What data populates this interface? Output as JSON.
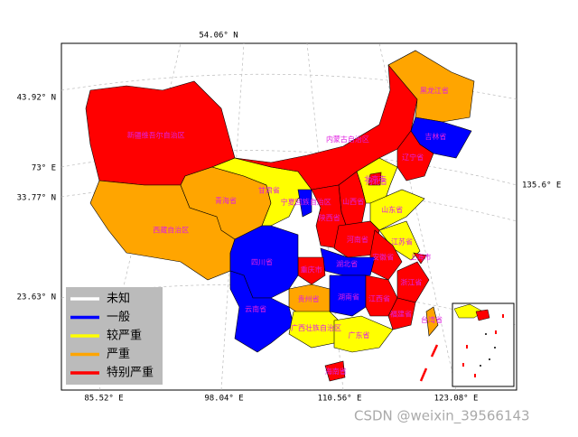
{
  "map": {
    "top_label": "54.06° N",
    "lat_labels": [
      "43.92° N",
      "33.77° N",
      "23.63° N"
    ],
    "left_lon_label": "73° E",
    "right_lon_label": "135.6° E",
    "bottom_labels": [
      "85.52° E",
      "98.04° E",
      "110.56° E",
      "123.08° E"
    ],
    "legend": [
      {
        "label": "未知",
        "color": "#ffffff"
      },
      {
        "label": "一般",
        "color": "#0000ff"
      },
      {
        "label": "较严重",
        "color": "#ffff00"
      },
      {
        "label": "严重",
        "color": "#ffa500"
      },
      {
        "label": "特别严重",
        "color": "#ff0000"
      }
    ],
    "regions": [
      {
        "name": "新疆维吾尔自治区",
        "level": 4
      },
      {
        "name": "西藏自治区",
        "level": 3
      },
      {
        "name": "青海省",
        "level": 3
      },
      {
        "name": "甘肃省",
        "level": 2
      },
      {
        "name": "内蒙古自治区",
        "level": 4
      },
      {
        "name": "黑龙江省",
        "level": 3
      },
      {
        "name": "吉林省",
        "level": 1
      },
      {
        "name": "辽宁省",
        "level": 4
      },
      {
        "name": "河北省",
        "level": 2
      },
      {
        "name": "北京市",
        "level": 4
      },
      {
        "name": "山西省",
        "level": 4
      },
      {
        "name": "陕西省",
        "level": 4
      },
      {
        "name": "宁夏回族自治区",
        "level": 1
      },
      {
        "name": "山东省",
        "level": 2
      },
      {
        "name": "河南省",
        "level": 4
      },
      {
        "name": "江苏省",
        "level": 2
      },
      {
        "name": "安徽省",
        "level": 4
      },
      {
        "name": "上海市",
        "level": 4
      },
      {
        "name": "浙江省",
        "level": 4
      },
      {
        "name": "湖北省",
        "level": 1
      },
      {
        "name": "重庆市",
        "level": 4
      },
      {
        "name": "四川省",
        "level": 1
      },
      {
        "name": "湖南省",
        "level": 1
      },
      {
        "name": "江西省",
        "level": 4
      },
      {
        "name": "福建省",
        "level": 4
      },
      {
        "name": "贵州省",
        "level": 3
      },
      {
        "name": "云南省",
        "level": 1
      },
      {
        "name": "广西壮族自治区",
        "level": 2
      },
      {
        "name": "广东省",
        "level": 2
      },
      {
        "name": "海南省",
        "level": 4
      },
      {
        "name": "台湾省",
        "level": 3
      }
    ],
    "watermark": "CSDN @weixin_39566143"
  }
}
